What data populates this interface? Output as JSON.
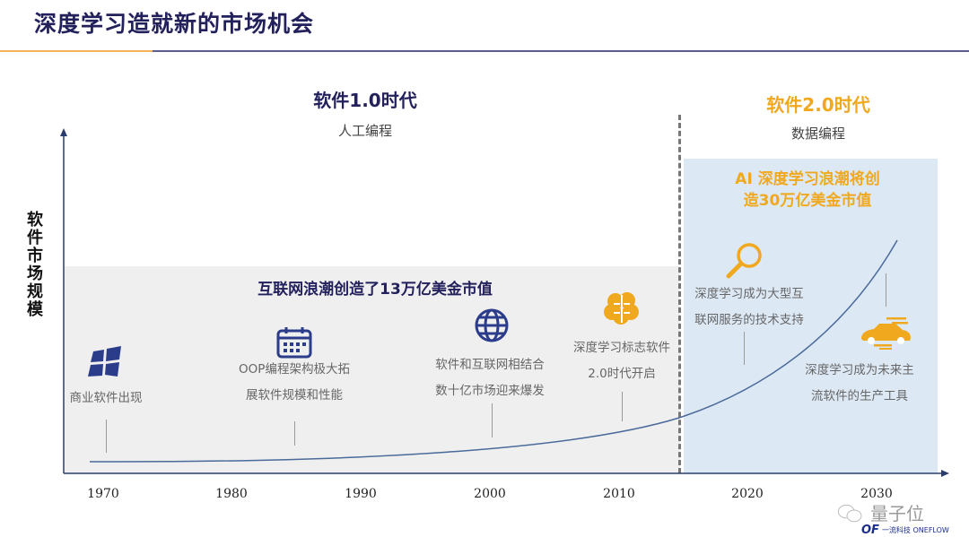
{
  "title": "深度学习造就新的市场机会",
  "y_axis_label": "软件市场规模",
  "era1": {
    "title": "软件1.0时代",
    "subtitle": "人工编程",
    "headline": "互联网浪潮创造了13万亿美金市值"
  },
  "era2": {
    "title": "软件2.0时代",
    "subtitle": "数据编程",
    "headline_line1": "AI 深度学习浪潮将创",
    "headline_line2": "造30万亿美金市值"
  },
  "milestones": [
    {
      "icon": "windows-icon",
      "lines": [
        "商业软件出现"
      ]
    },
    {
      "icon": "calendar-icon",
      "lines": [
        "OOP编程架构极大拓",
        "展软件规模和性能"
      ]
    },
    {
      "icon": "globe-icon",
      "lines": [
        "软件和互联网相结合",
        "数十亿市场迎来爆发"
      ]
    },
    {
      "icon": "brain-icon",
      "lines": [
        "深度学习标志软件",
        "2.0时代开启"
      ]
    },
    {
      "icon": "magnifier-icon",
      "lines": [
        "深度学习成为大型互",
        "联网服务的技术支持"
      ]
    },
    {
      "icon": "car-icon",
      "lines": [
        "深度学习成为未来主",
        "流软件的生产工具"
      ]
    }
  ],
  "years": [
    "1970",
    "1980",
    "1990",
    "2000",
    "2010",
    "2020",
    "2030"
  ],
  "watermark": {
    "text": "量子位",
    "logo": "一流科技 ONEFLOW"
  },
  "colors": {
    "navy": "#23215c",
    "orange": "#f0a81e",
    "era1_bg": "#efefef",
    "era2_bg": "#dde8f5"
  }
}
